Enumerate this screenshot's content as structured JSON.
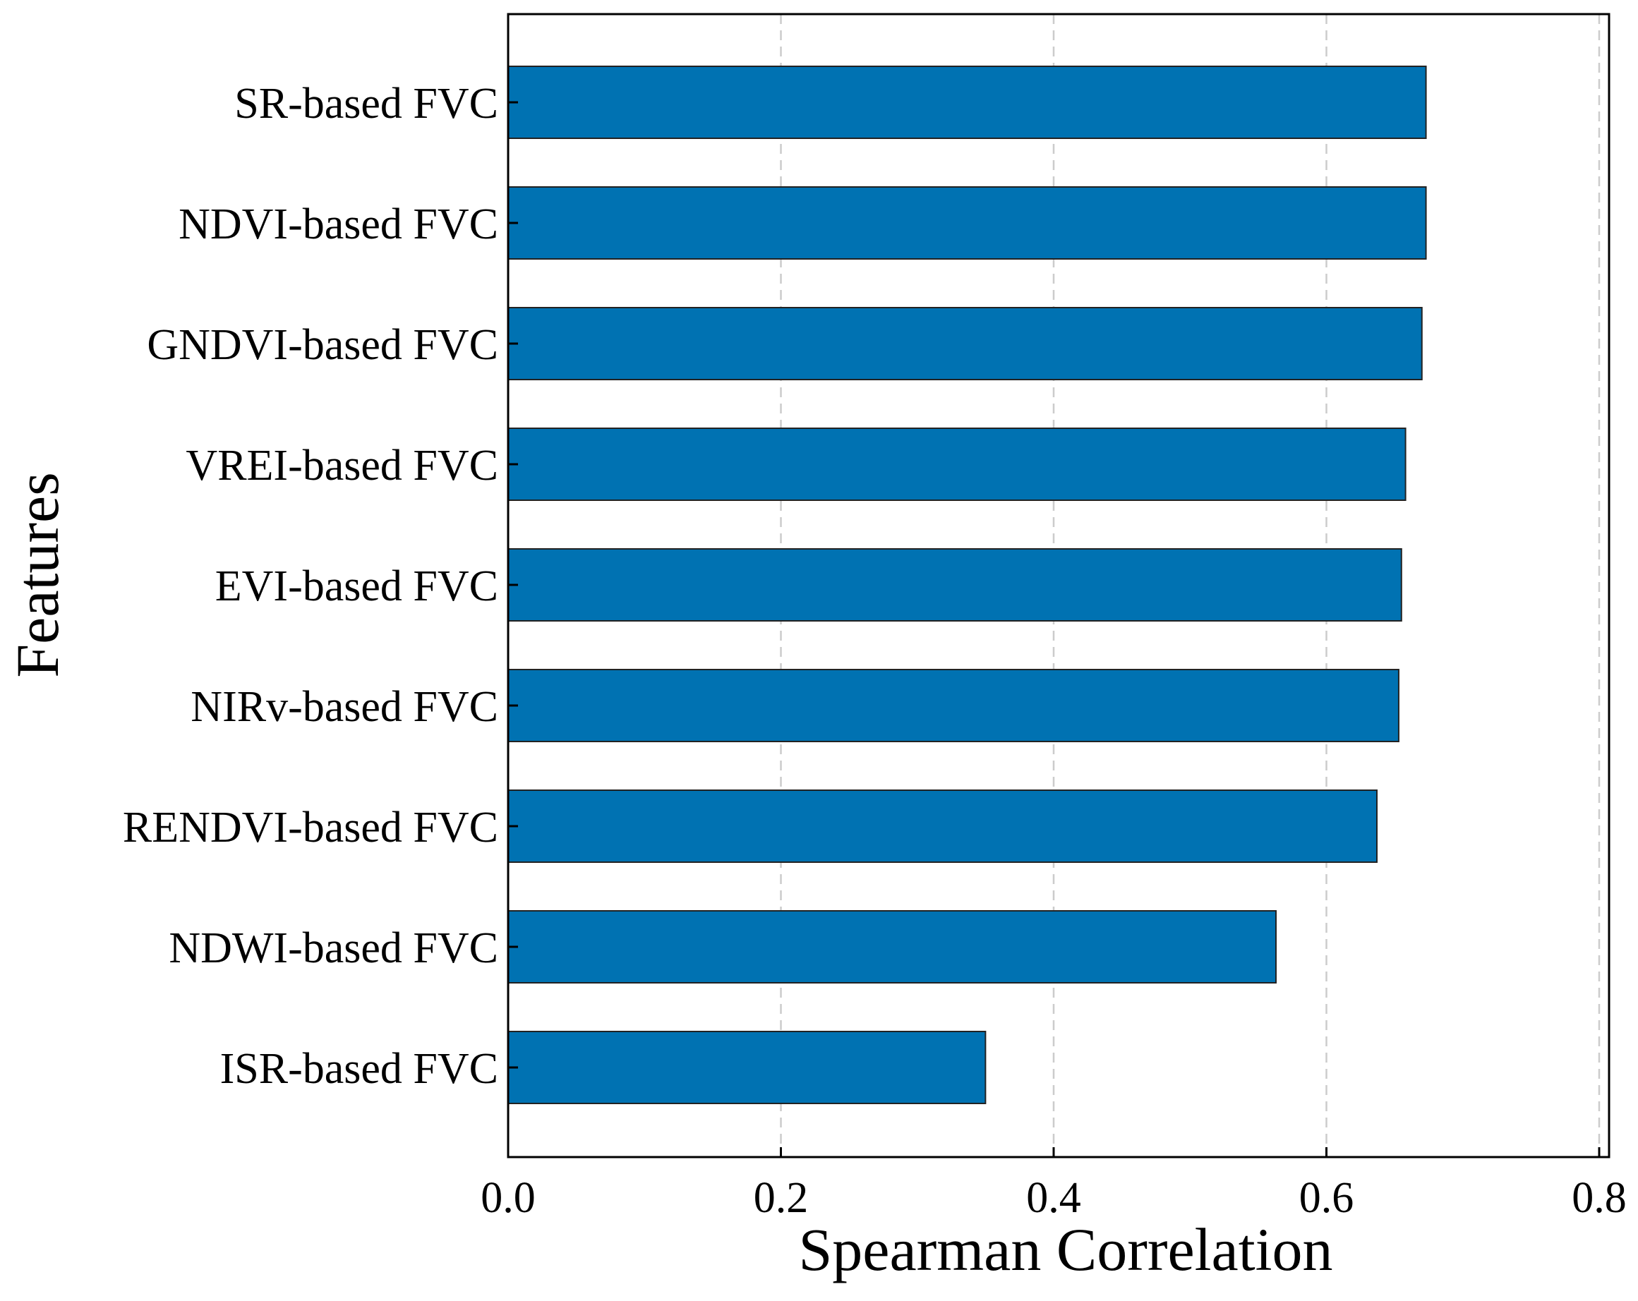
{
  "chart_data": {
    "type": "bar",
    "orientation": "horizontal",
    "categories": [
      "SR-based FVC",
      "NDVI-based FVC",
      "GNDVI-based FVC",
      "VREI-based FVC",
      "EVI-based FVC",
      "NIRv-based FVC",
      "RENDVI-based FVC",
      "NDWI-based FVC",
      "ISR-based FVC"
    ],
    "values": [
      0.673,
      0.673,
      0.67,
      0.658,
      0.655,
      0.653,
      0.637,
      0.563,
      0.35
    ],
    "xlabel": "Spearman Correlation",
    "ylabel": "Features",
    "xlim": [
      0.0,
      0.8
    ],
    "xticks": [
      "0.0",
      "0.2",
      "0.4",
      "0.6",
      "0.8"
    ],
    "grid": "vertical dashed",
    "bar_color": "#0072b2",
    "edge_color": "#222222",
    "grid_color": "#cccccc"
  }
}
